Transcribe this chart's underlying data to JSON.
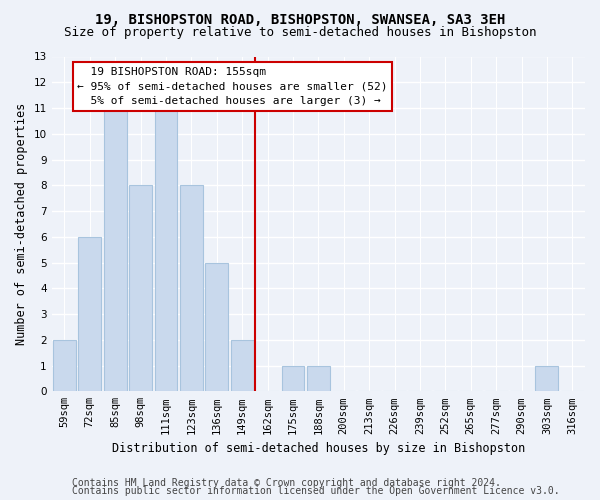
{
  "title1": "19, BISHOPSTON ROAD, BISHOPSTON, SWANSEA, SA3 3EH",
  "title2": "Size of property relative to semi-detached houses in Bishopston",
  "xlabel": "Distribution of semi-detached houses by size in Bishopston",
  "ylabel": "Number of semi-detached properties",
  "categories": [
    "59sqm",
    "72sqm",
    "85sqm",
    "98sqm",
    "111sqm",
    "123sqm",
    "136sqm",
    "149sqm",
    "162sqm",
    "175sqm",
    "188sqm",
    "200sqm",
    "213sqm",
    "226sqm",
    "239sqm",
    "252sqm",
    "265sqm",
    "277sqm",
    "290sqm",
    "303sqm",
    "316sqm"
  ],
  "values": [
    2,
    6,
    11,
    8,
    11,
    8,
    5,
    2,
    0,
    1,
    1,
    0,
    0,
    0,
    0,
    0,
    0,
    0,
    0,
    1,
    0
  ],
  "bar_color": "#c9d9ed",
  "bar_edge_color": "#a8c4de",
  "vline_color": "#cc0000",
  "annotation_text": "  19 BISHOPSTON ROAD: 155sqm\n← 95% of semi-detached houses are smaller (52)\n  5% of semi-detached houses are larger (3) →",
  "annotation_box_color": "white",
  "annotation_box_edge": "#cc0000",
  "ylim": [
    0,
    13
  ],
  "yticks": [
    0,
    1,
    2,
    3,
    4,
    5,
    6,
    7,
    8,
    9,
    10,
    11,
    12,
    13
  ],
  "footer1": "Contains HM Land Registry data © Crown copyright and database right 2024.",
  "footer2": "Contains public sector information licensed under the Open Government Licence v3.0.",
  "bg_color": "#eef2f9",
  "grid_color": "#ffffff",
  "title1_fontsize": 10,
  "title2_fontsize": 9,
  "axis_label_fontsize": 8.5,
  "tick_fontsize": 7.5,
  "footer_fontsize": 7,
  "annot_fontsize": 8
}
